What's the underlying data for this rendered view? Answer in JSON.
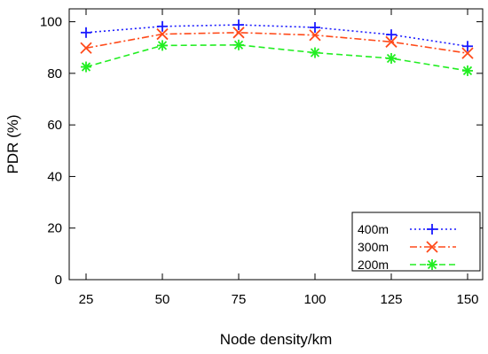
{
  "chart_data": {
    "type": "line",
    "title": "",
    "xlabel": "Node density/km",
    "ylabel": "PDR (%)",
    "categories": [
      "25",
      "50",
      "75",
      "100",
      "125",
      "150"
    ],
    "x": [
      25,
      50,
      75,
      100,
      125,
      150
    ],
    "ylim": [
      0,
      105
    ],
    "yticks": [
      "0",
      "20",
      "40",
      "60",
      "80",
      "100"
    ],
    "grid": false,
    "legend_position": "bottom-right",
    "series": [
      {
        "name": "400m",
        "values": [
          95.8,
          98.2,
          98.8,
          97.8,
          95.0,
          90.5
        ],
        "color": "#1a1aff",
        "marker": "plus",
        "dash": "dotted"
      },
      {
        "name": "300m",
        "values": [
          89.8,
          95.2,
          95.8,
          94.8,
          92.2,
          87.8
        ],
        "color": "#ff4a1a",
        "marker": "x",
        "dash": "dashdot"
      },
      {
        "name": "200m",
        "values": [
          82.5,
          90.8,
          91.0,
          88.0,
          85.8,
          81.0
        ],
        "color": "#22ee22",
        "marker": "star",
        "dash": "dashed"
      }
    ]
  }
}
